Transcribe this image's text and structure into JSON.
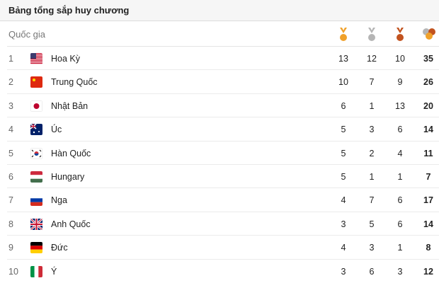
{
  "title": "Bảng tổng sắp huy chương",
  "header": {
    "country": "Quốc gia",
    "icons": [
      "gold-medal-icon",
      "silver-medal-icon",
      "bronze-medal-icon",
      "total-medals-icon"
    ]
  },
  "colors": {
    "gold": "#f0a12a",
    "silver": "#b5b5b5",
    "bronze": "#c2531f"
  },
  "rows": [
    {
      "rank": "1",
      "country": "Hoa Kỳ",
      "flag": "us",
      "gold": "13",
      "silver": "12",
      "bronze": "10",
      "total": "35"
    },
    {
      "rank": "2",
      "country": "Trung Quốc",
      "flag": "cn",
      "gold": "10",
      "silver": "7",
      "bronze": "9",
      "total": "26"
    },
    {
      "rank": "3",
      "country": "Nhật Bản",
      "flag": "jp",
      "gold": "6",
      "silver": "1",
      "bronze": "13",
      "total": "20"
    },
    {
      "rank": "4",
      "country": "Úc",
      "flag": "au",
      "gold": "5",
      "silver": "3",
      "bronze": "6",
      "total": "14"
    },
    {
      "rank": "5",
      "country": "Hàn Quốc",
      "flag": "kr",
      "gold": "5",
      "silver": "2",
      "bronze": "4",
      "total": "11"
    },
    {
      "rank": "6",
      "country": "Hungary",
      "flag": "hu",
      "gold": "5",
      "silver": "1",
      "bronze": "1",
      "total": "7"
    },
    {
      "rank": "7",
      "country": "Nga",
      "flag": "ru",
      "gold": "4",
      "silver": "7",
      "bronze": "6",
      "total": "17"
    },
    {
      "rank": "8",
      "country": "Anh Quốc",
      "flag": "gb",
      "gold": "3",
      "silver": "5",
      "bronze": "6",
      "total": "14"
    },
    {
      "rank": "9",
      "country": "Đức",
      "flag": "de",
      "gold": "4",
      "silver": "3",
      "bronze": "1",
      "total": "8"
    },
    {
      "rank": "10",
      "country": "Ý",
      "flag": "it",
      "gold": "3",
      "silver": "6",
      "bronze": "3",
      "total": "12"
    }
  ]
}
